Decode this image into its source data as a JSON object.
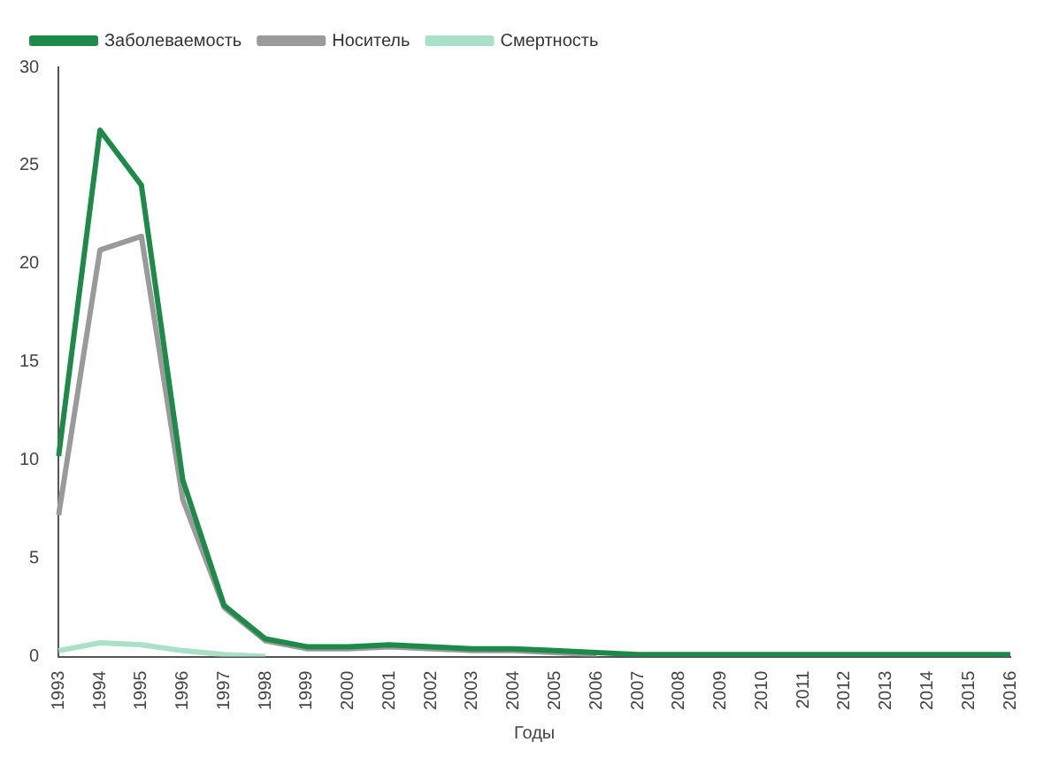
{
  "chart_data": {
    "type": "line",
    "xlabel": "Годы",
    "categories": [
      "1993",
      "1994",
      "1995",
      "1996",
      "1997",
      "1998",
      "1999",
      "2000",
      "2001",
      "2002",
      "2003",
      "2004",
      "2005",
      "2006",
      "2007",
      "2008",
      "2009",
      "2010",
      "2011",
      "2012",
      "2013",
      "2014",
      "2015",
      "2016"
    ],
    "series": [
      {
        "name": "Заболеваемость",
        "color": "#1e8a4a",
        "values": [
          10.2,
          26.8,
          24.0,
          9.0,
          2.6,
          0.9,
          0.5,
          0.5,
          0.6,
          0.5,
          0.4,
          0.4,
          0.3,
          0.2,
          0.1,
          0.1,
          0.1,
          0.1,
          0.1,
          0.1,
          0.1,
          0.1,
          0.1,
          0.1
        ]
      },
      {
        "name": "Носитель",
        "color": "#9a9a9a",
        "values": [
          7.2,
          20.7,
          21.4,
          8.0,
          2.5,
          0.8,
          0.4,
          0.4,
          0.5,
          0.4,
          0.3,
          0.3,
          0.2,
          0.1,
          null,
          null,
          null,
          null,
          null,
          null,
          null,
          null,
          null,
          null
        ]
      },
      {
        "name": "Смертность",
        "color": "#a8e0c8",
        "values": [
          0.3,
          0.7,
          0.6,
          0.3,
          0.1,
          0,
          null,
          null,
          null,
          null,
          null,
          null,
          null,
          null,
          null,
          null,
          null,
          null,
          null,
          null,
          null,
          null,
          null,
          null
        ]
      }
    ],
    "ylim": [
      0,
      30
    ],
    "yticks": [
      0,
      5,
      10,
      15,
      20,
      25,
      30
    ],
    "grid": false,
    "legend": "top left",
    "marker": "none",
    "line_style": "solid"
  }
}
